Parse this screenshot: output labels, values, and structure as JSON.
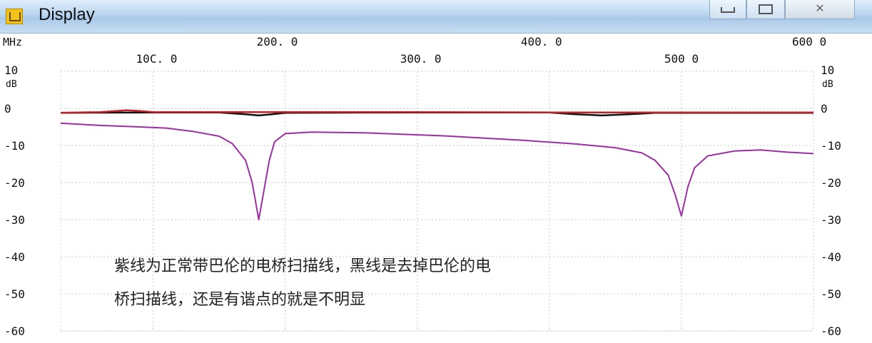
{
  "window": {
    "title": "Display",
    "close_glyph": "✕"
  },
  "chart_data": {
    "type": "line",
    "x_unit": "MHz",
    "y_unit": "dB",
    "xlim": [
      30,
      600
    ],
    "ylim": [
      -60,
      10
    ],
    "x_ticks_top": [
      "200. 0",
      "400. 0",
      "600 0"
    ],
    "x_ticks_top_values": [
      200,
      400,
      600
    ],
    "x_ticks_second": [
      "10C. 0",
      "300. 0",
      "500 0"
    ],
    "x_ticks_second_values": [
      100,
      300,
      500
    ],
    "y_ticks": [
      "10",
      "0",
      "-10",
      "-20",
      "-30",
      "-40",
      "-50",
      "-60"
    ],
    "y_tick_values": [
      10,
      0,
      -10,
      -20,
      -30,
      -40,
      -50,
      -60
    ],
    "grid": true,
    "series": [
      {
        "color": "#9b2fa3",
        "x": [
          30,
          60,
          90,
          110,
          130,
          150,
          160,
          170,
          175,
          180,
          184,
          188,
          192,
          200,
          220,
          260,
          320,
          380,
          420,
          450,
          470,
          480,
          490,
          495,
          500,
          505,
          510,
          520,
          540,
          560,
          580,
          600
        ],
        "y": [
          -4,
          -4.6,
          -5,
          -5.3,
          -6.2,
          -7.5,
          -9.5,
          -14,
          -20,
          -30,
          -22,
          -14,
          -9,
          -6.8,
          -6.4,
          -6.6,
          -7.4,
          -8.6,
          -9.6,
          -10.6,
          -12,
          -14,
          -18,
          -23,
          -29,
          -21,
          -16,
          -12.8,
          -11.5,
          -11.2,
          -11.8,
          -12.2
        ]
      },
      {
        "color": "#111111",
        "x": [
          30,
          100,
          150,
          170,
          180,
          190,
          200,
          300,
          400,
          420,
          440,
          460,
          480,
          520,
          600
        ],
        "y": [
          -1.2,
          -1.1,
          -1.1,
          -1.6,
          -1.9,
          -1.6,
          -1.2,
          -1.1,
          -1.1,
          -1.6,
          -1.9,
          -1.6,
          -1.2,
          -1.2,
          -1.2
        ]
      },
      {
        "color": "#c0202a",
        "x": [
          30,
          60,
          80,
          90,
          100,
          200,
          300,
          400,
          500,
          600
        ],
        "y": [
          -1.2,
          -1.0,
          -0.5,
          -0.7,
          -1.0,
          -1.0,
          -1.0,
          -1.1,
          -1.1,
          -1.1
        ]
      }
    ]
  },
  "annotation": {
    "line1": "紫线为正常带巴伦的电桥扫描线，黑线是去掉巴伦的电",
    "line2": "桥扫描线，还是有谐点的就是不明显"
  }
}
